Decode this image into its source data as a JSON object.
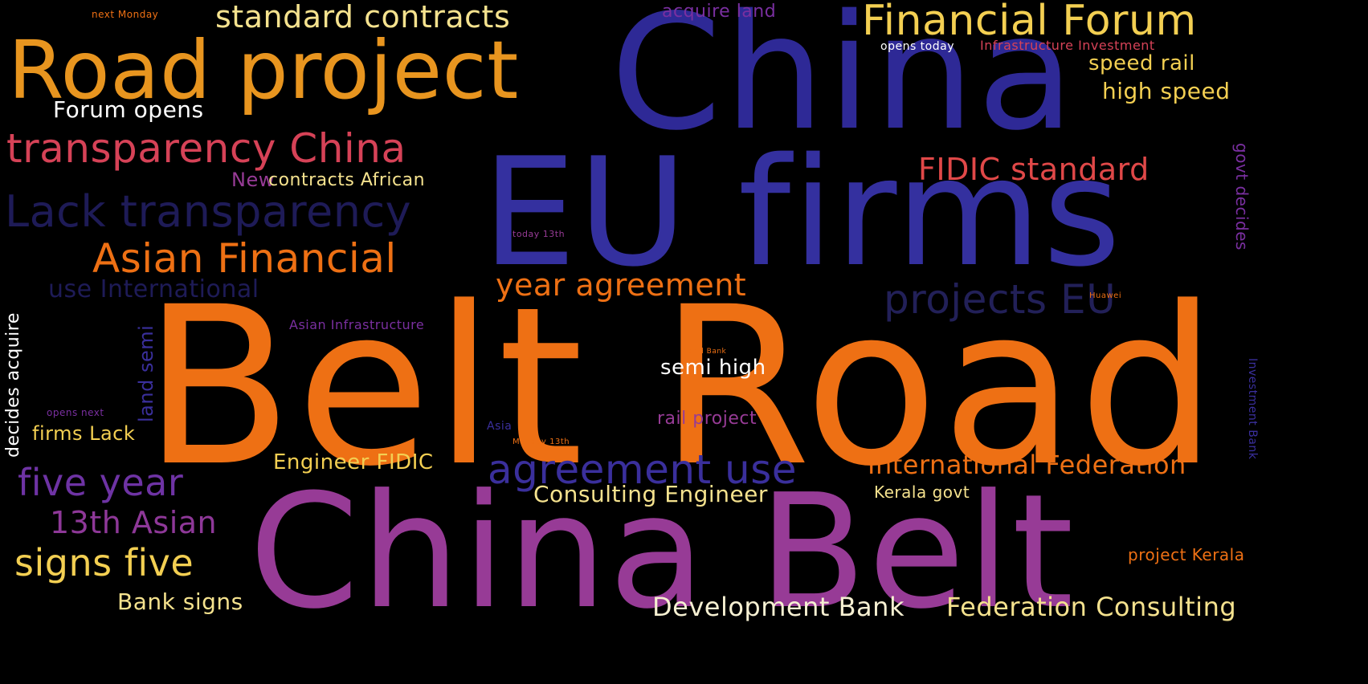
{
  "words": {
    "belt_road": "Belt Road",
    "china_top": "China",
    "eu_firms": "EU firms",
    "china_belt": "China Belt",
    "road_project": "Road project",
    "financial_forum": "Financial Forum",
    "standard_contracts": "standard contracts",
    "transparency_china": "transparency China",
    "lack_transparency": "Lack transparency",
    "asian_financial": "Asian Financial",
    "fidic_standard": "FIDIC standard",
    "projects_eu": "projects EU",
    "year_agreement": "year agreement",
    "agreement_use": "agreement use",
    "five_year": "five year",
    "signs_five": "signs five",
    "thirteenth_asian": "13th Asian",
    "international_federation": "International Federation",
    "federation_consulting": "Federation Consulting",
    "development_bank": "Development Bank",
    "consulting_engineer": "Consulting Engineer",
    "engineer_fidic": "Engineer FIDIC",
    "forum_opens": "Forum opens",
    "speed_rail": "speed rail",
    "high_speed": "high speed",
    "semi_high": "semi high",
    "rail_project": "rail project",
    "use_international": "use International",
    "new": "New",
    "contracts_african": "contracts African",
    "firms_lack": "firms Lack",
    "bank_signs": "Bank signs",
    "kerala_govt": "Kerala govt",
    "project_kerala": "project Kerala",
    "acquire_land": "acquire land",
    "asian_infrastructure": "Asian Infrastructure",
    "infrastructure_investment": "Infrastructure Investment",
    "opens_today": "opens today",
    "govt_decides": "govt decides",
    "decides_acquire": "decides acquire",
    "land_semi": "land semi",
    "investment_bank": "Investment Bank",
    "next_monday": "next Monday",
    "opens_next": "opens next",
    "asia": "Asia",
    "today_13th": "today 13th",
    "monday_13th": "Monday 13th",
    "huawei": "Huawei",
    "world_bank": "World Bank"
  },
  "colors": {
    "background": "#000000",
    "orange": "#EE7014",
    "amber": "#E8951F",
    "yellow": "#F3CF52",
    "pale_yellow": "#F5E28E",
    "indigo": "#2E2996",
    "navy": "#1E1B57",
    "purple": "#973B96",
    "violet": "#7A2FA0",
    "crimson": "#D64257",
    "red_orange": "#E95A3A",
    "white": "#FFFFFF",
    "cream": "#F6F0D2"
  }
}
